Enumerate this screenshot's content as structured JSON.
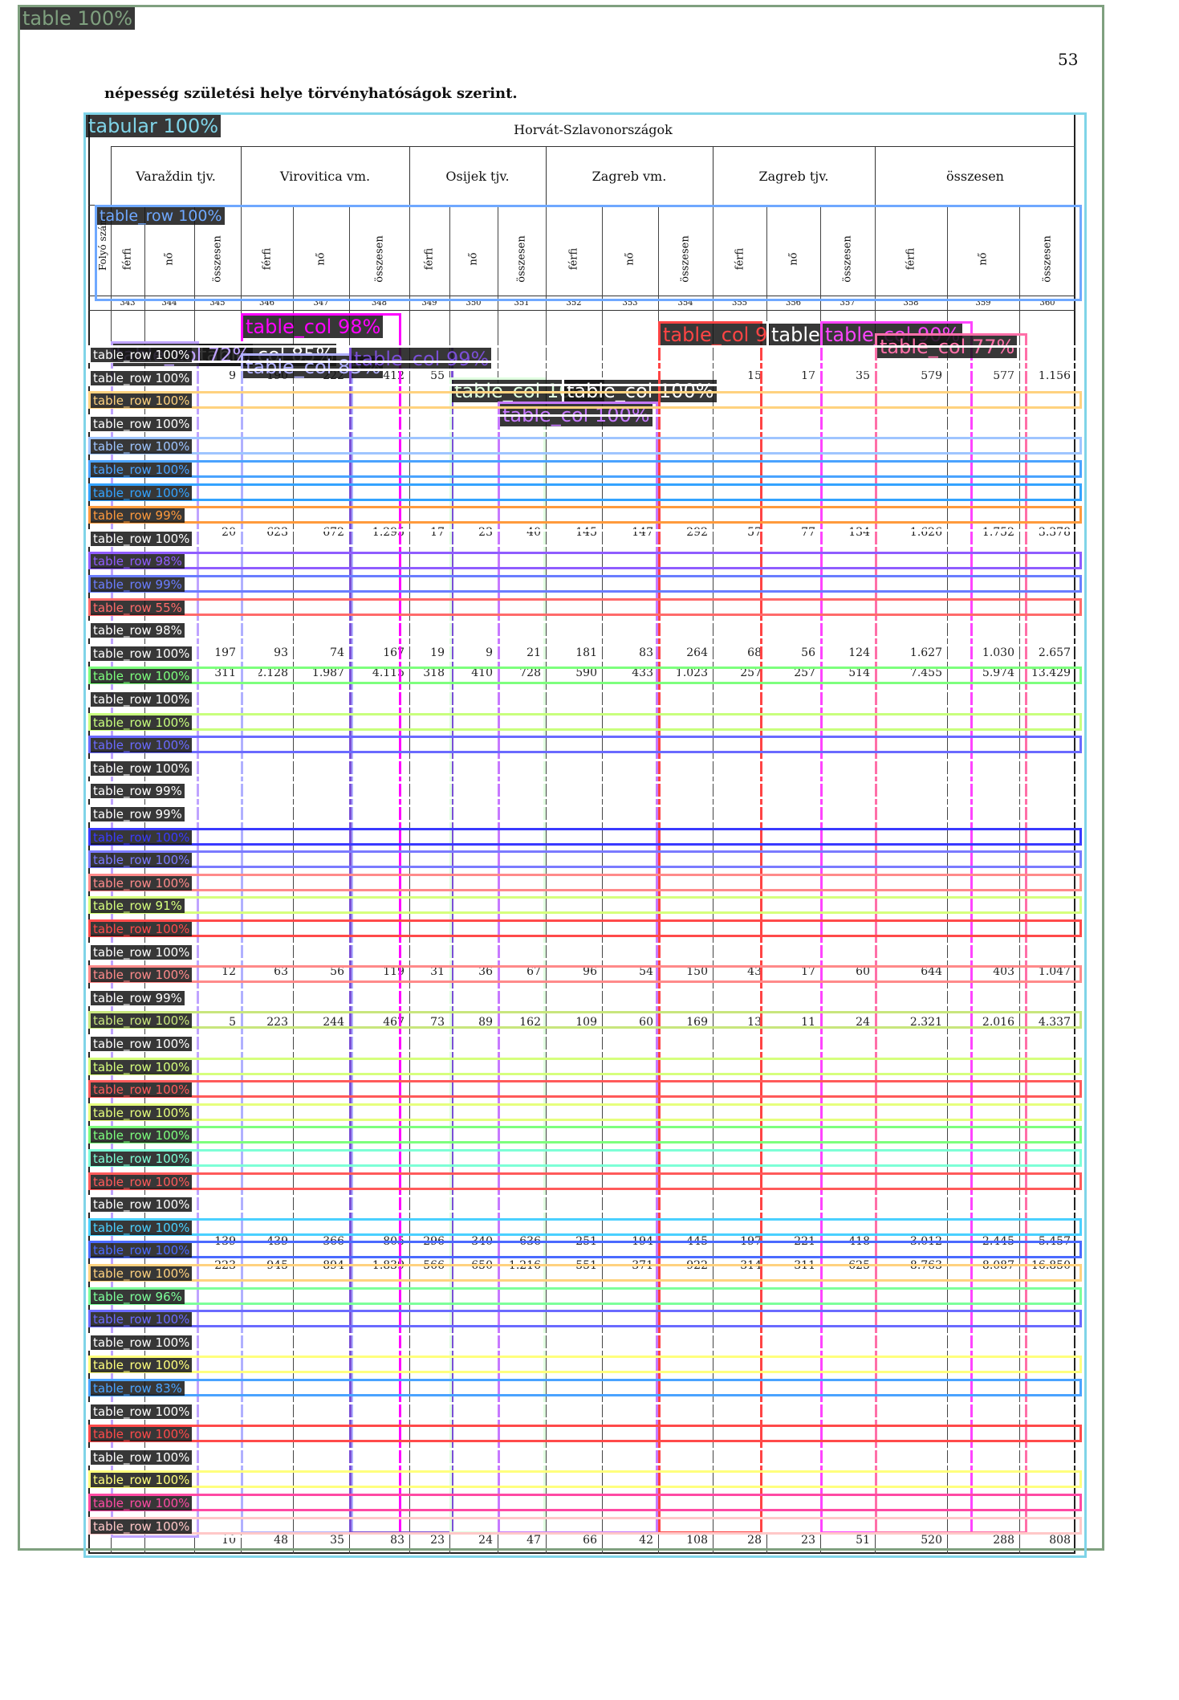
{
  "page_number": "53",
  "heading": "népesség születési helye törvényhatóságok szerint.",
  "group_header": "Horvát-Szlavonországok",
  "county_headers": [
    "Varaždin tjv.",
    "Virovitica vm.",
    "Osijek tjv.",
    "Zagreb vm.",
    "Zagreb tjv.",
    "összesen"
  ],
  "first_col_header": "Folyó szám",
  "sub_headers": [
    "férfi",
    "nő",
    "összesen",
    "férfi",
    "nő",
    "összesen",
    "férfi",
    "nő",
    "összesen",
    "férfi",
    "nő",
    "összesen",
    "férfi",
    "nő",
    "összesen",
    "férfi",
    "nő",
    "összesen"
  ],
  "column_numbers": [
    "343",
    "344",
    "345",
    "346",
    "347",
    "348",
    "349",
    "350",
    "351",
    "352",
    "353",
    "354",
    "355",
    "356",
    "357",
    "358",
    "359",
    "360"
  ],
  "sample_rows": [
    {
      "cells": [
        "9",
        "190",
        "222",
        "412",
        "55",
        "",
        "",
        "",
        "",
        "",
        "15",
        "17",
        "35",
        "579",
        "577",
        "1.156"
      ]
    },
    {
      "cells": [
        "20",
        "623",
        "672",
        "1.295",
        "17",
        "23",
        "40",
        "145",
        "147",
        "292",
        "57",
        "77",
        "134",
        "1.626",
        "1.752",
        "3.378"
      ]
    },
    {
      "cells": [
        "197",
        "93",
        "74",
        "167",
        "19",
        "9",
        "21",
        "181",
        "83",
        "264",
        "68",
        "56",
        "124",
        "1.627",
        "1.030",
        "2.657"
      ]
    },
    {
      "cells": [
        "311",
        "2.128",
        "1.987",
        "4.115",
        "318",
        "410",
        "728",
        "590",
        "433",
        "1.023",
        "257",
        "257",
        "514",
        "7.455",
        "5.974",
        "13.429"
      ]
    },
    {
      "cells": [
        "12",
        "63",
        "56",
        "119",
        "31",
        "36",
        "67",
        "96",
        "54",
        "150",
        "43",
        "17",
        "60",
        "644",
        "403",
        "1.047"
      ]
    },
    {
      "cells": [
        "5",
        "223",
        "244",
        "467",
        "73",
        "89",
        "162",
        "109",
        "60",
        "169",
        "13",
        "11",
        "24",
        "2.321",
        "2.016",
        "4.337"
      ]
    },
    {
      "cells": [
        "139",
        "439",
        "366",
        "805",
        "296",
        "340",
        "636",
        "251",
        "194",
        "445",
        "197",
        "221",
        "418",
        "3.012",
        "2.445",
        "5.457"
      ]
    },
    {
      "cells": [
        "223",
        "945",
        "894",
        "1.839",
        "566",
        "650",
        "1.216",
        "551",
        "371",
        "922",
        "314",
        "311",
        "625",
        "8.763",
        "8.087",
        "16.850"
      ]
    },
    {
      "cells": [
        "10",
        "48",
        "35",
        "83",
        "23",
        "24",
        "47",
        "66",
        "42",
        "108",
        "28",
        "23",
        "51",
        "520",
        "288",
        "808"
      ]
    }
  ],
  "detections": {
    "table": {
      "label": "table 100%",
      "color": "#7fa07f"
    },
    "tabular": {
      "label": "tabular 100%",
      "color": "#7fd4e8"
    },
    "header_row": {
      "label": "table_row 100%",
      "color": "#6fa8ff"
    },
    "columns": [
      {
        "label": "table_col 98%",
        "color": "#ff00ff"
      },
      {
        "label": "table_col 85%",
        "color": "#ffffff"
      },
      {
        "label": "table_col 72%",
        "color": "#bfa3ff"
      },
      {
        "label": "table_col 85%",
        "color": "#b0b0ff"
      },
      {
        "label": "table_col 99%",
        "color": "#7a4fd6"
      },
      {
        "label": "table_col 100%",
        "color": "#e0ffe0"
      },
      {
        "label": "table_col 100%",
        "color": "#ffffff"
      },
      {
        "label": "table_col 100%",
        "color": "#c779ff"
      },
      {
        "label": "table_col 9",
        "color": "#ff4444"
      },
      {
        "label": "table",
        "color": "#ffffff"
      },
      {
        "label": "table_col 90%",
        "color": "#ff44ff"
      },
      {
        "label": "table_col 77%",
        "color": "#ff6fa8"
      }
    ],
    "rows": [
      {
        "label": "table_row 100%",
        "color": "#ffffff"
      },
      {
        "label": "table_row 100%",
        "color": "#ffffff"
      },
      {
        "label": "table_row 100%",
        "color": "#ffd27f"
      },
      {
        "label": "table_row 100%",
        "color": "#ffffff"
      },
      {
        "label": "table_row 100%",
        "color": "#9fc5ff"
      },
      {
        "label": "table_row 100%",
        "color": "#4aa3ff"
      },
      {
        "label": "table_row 100%",
        "color": "#33a3ff"
      },
      {
        "label": "table_row 99%",
        "color": "#ff9a3c"
      },
      {
        "label": "table_row 100%",
        "color": "#ffffff"
      },
      {
        "label": "table_row 98%",
        "color": "#8f5cff"
      },
      {
        "label": "table_row 99%",
        "color": "#6a7dff"
      },
      {
        "label": "table_row 55%",
        "color": "#ff6a6a"
      },
      {
        "label": "table_row 98%",
        "color": "#ffffff"
      },
      {
        "label": "table_row 100%",
        "color": "#ffffff"
      },
      {
        "label": "table_row 100%",
        "color": "#7dff7d"
      },
      {
        "label": "table_row 100%",
        "color": "#ffffff"
      },
      {
        "label": "table_row 100%",
        "color": "#c8ff7d"
      },
      {
        "label": "table_row 100%",
        "color": "#6a6aff"
      },
      {
        "label": "table_row 100%",
        "color": "#ffffff"
      },
      {
        "label": "table_row 99%",
        "color": "#ffffff"
      },
      {
        "label": "table_row 99%",
        "color": "#ffffff"
      },
      {
        "label": "table_row 100%",
        "color": "#3a3aff"
      },
      {
        "label": "table_row 100%",
        "color": "#7a7aff"
      },
      {
        "label": "table_row 100%",
        "color": "#ff8a8a"
      },
      {
        "label": "table_row 91%",
        "color": "#d6ff7d"
      },
      {
        "label": "table_row 100%",
        "color": "#ff4a4a"
      },
      {
        "label": "table_row 100%",
        "color": "#ffffff"
      },
      {
        "label": "table_row 100%",
        "color": "#ff8a8a"
      },
      {
        "label": "table_row 99%",
        "color": "#ffffff"
      },
      {
        "label": "table_row 100%",
        "color": "#c8e67d"
      },
      {
        "label": "table_row 100%",
        "color": "#ffffff"
      },
      {
        "label": "table_row 100%",
        "color": "#d6ff7d"
      },
      {
        "label": "table_row 100%",
        "color": "#ff5a5a"
      },
      {
        "label": "table_row 100%",
        "color": "#e6ff7d"
      },
      {
        "label": "table_row 100%",
        "color": "#7dff7d"
      },
      {
        "label": "table_row 100%",
        "color": "#7dffd6"
      },
      {
        "label": "table_row 100%",
        "color": "#ff5a5a"
      },
      {
        "label": "table_row 100%",
        "color": "#ffffff"
      },
      {
        "label": "table_row 100%",
        "color": "#4ad0ff"
      },
      {
        "label": "table_row 100%",
        "color": "#4a6aff"
      },
      {
        "label": "table_row 100%",
        "color": "#ffd27f"
      },
      {
        "label": "table_row 96%",
        "color": "#7dff9a"
      },
      {
        "label": "table_row 100%",
        "color": "#6a6aff"
      },
      {
        "label": "table_row 100%",
        "color": "#ffffff"
      },
      {
        "label": "table_row 100%",
        "color": "#ffff7d"
      },
      {
        "label": "table_row 83%",
        "color": "#4aa3ff"
      },
      {
        "label": "table_row 100%",
        "color": "#ffffff"
      },
      {
        "label": "table_row 100%",
        "color": "#ff4a4a"
      },
      {
        "label": "table_row 100%",
        "color": "#ffffff"
      },
      {
        "label": "table_row 100%",
        "color": "#ffff7d"
      },
      {
        "label": "table_row 100%",
        "color": "#ff4aa3"
      },
      {
        "label": "table_row 100%",
        "color": "#ffc8c8"
      }
    ]
  }
}
